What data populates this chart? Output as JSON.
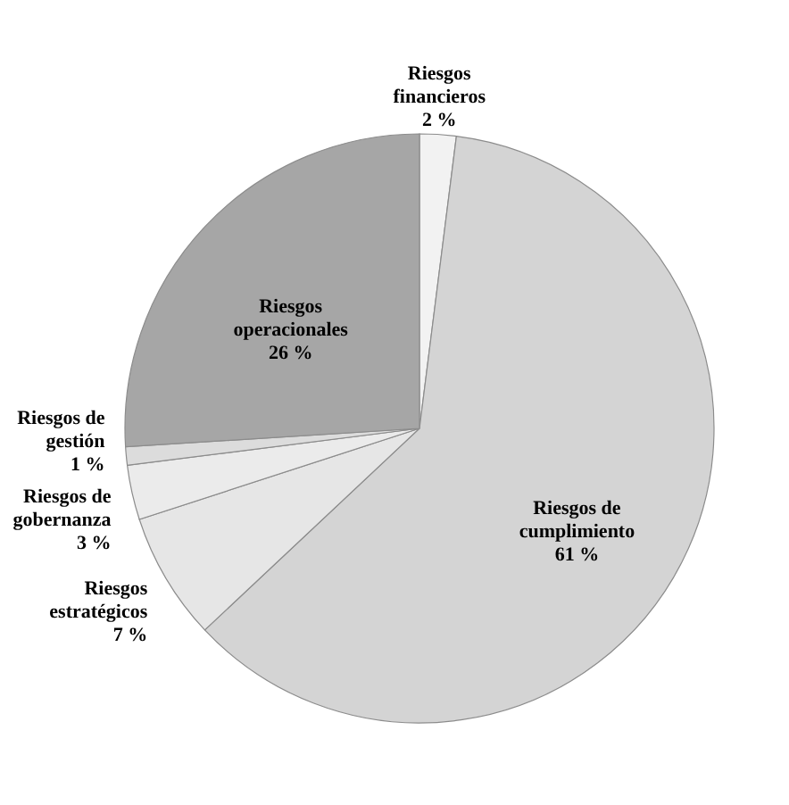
{
  "chart_data": {
    "type": "pie",
    "categories": [
      "Riesgos financieros",
      "Riesgos de cumplimiento",
      "Riesgos estratégicos",
      "Riesgos de gobernanza",
      "Riesgos de gestión",
      "Riesgos operacionales"
    ],
    "values": [
      2,
      61,
      7,
      3,
      1,
      26
    ],
    "value_labels": [
      "2 %",
      "61 %",
      "7 %",
      "3 %",
      "1 %",
      "26 %"
    ],
    "colors": [
      "#f2f2f2",
      "#d4d4d4",
      "#e6e6e6",
      "#ebebeb",
      "#dcdcdc",
      "#a6a6a6"
    ]
  }
}
